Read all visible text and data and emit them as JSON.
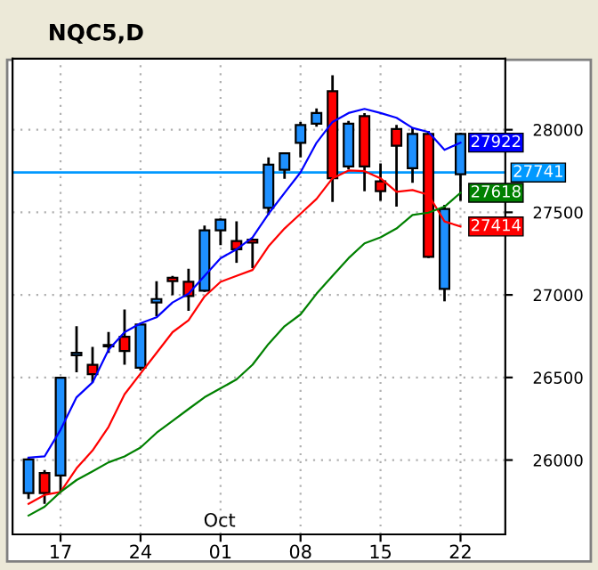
{
  "chart_data": {
    "type": "candlestick",
    "title": "NQC5,D",
    "categories": [
      null,
      null,
      "17",
      null,
      null,
      null,
      null,
      "24",
      null,
      null,
      null,
      null,
      "01",
      null,
      null,
      null,
      null,
      "08",
      null,
      null,
      null,
      null,
      "15",
      null,
      null,
      null,
      null,
      "22"
    ],
    "ohlc": [
      [
        25800,
        26015,
        25764,
        26004
      ],
      [
        25922,
        25939,
        25735,
        25800
      ],
      [
        25907,
        26498,
        25807,
        26498
      ],
      [
        26635,
        26810,
        26531,
        26649
      ],
      [
        26577,
        26685,
        26470,
        26520
      ],
      [
        26688,
        26775,
        26649,
        26696
      ],
      [
        26746,
        26911,
        26577,
        26660
      ],
      [
        26559,
        26821,
        26542,
        26821
      ],
      [
        26954,
        27083,
        26871,
        26975
      ],
      [
        27104,
        27115,
        26998,
        27083
      ],
      [
        27079,
        27158,
        26904,
        26993
      ],
      [
        27025,
        27420,
        27018,
        27391
      ],
      [
        27391,
        27463,
        27301,
        27455
      ],
      [
        27326,
        27445,
        27194,
        27276
      ],
      [
        27334,
        27341,
        27162,
        27316
      ],
      [
        27527,
        27832,
        27484,
        27789
      ],
      [
        27757,
        27864,
        27703,
        27857
      ],
      [
        27921,
        28047,
        27832,
        28029
      ],
      [
        28036,
        28129,
        28018,
        28101
      ],
      [
        28233,
        28330,
        27563,
        27706
      ],
      [
        27778,
        28054,
        27760,
        28036
      ],
      [
        28083,
        28101,
        27628,
        27778
      ],
      [
        27688,
        27796,
        27570,
        27628
      ],
      [
        28004,
        28029,
        27534,
        27903
      ],
      [
        27767,
        28011,
        27678,
        27975
      ],
      [
        27975,
        27993,
        27223,
        27230
      ],
      [
        27036,
        27545,
        26961,
        27520
      ],
      [
        27731,
        27982,
        27570,
        27975
      ]
    ],
    "colors": [
      "#1e90ff",
      "#ff0000",
      "#1e90ff",
      "#1e90ff",
      "#ff0000",
      "#1e90ff",
      "#ff0000",
      "#1e90ff",
      "#1e90ff",
      "#ff0000",
      "#ff0000",
      "#1e90ff",
      "#1e90ff",
      "#ff0000",
      "#ff0000",
      "#1e90ff",
      "#1e90ff",
      "#1e90ff",
      "#1e90ff",
      "#ff0000",
      "#1e90ff",
      "#ff0000",
      "#ff0000",
      "#ff0000",
      "#1e90ff",
      "#ff0000",
      "#1e90ff",
      "#1e90ff"
    ],
    "series": [
      {
        "type": "line",
        "color": "#0000ff",
        "values": [
          26015,
          26022,
          26183,
          26380,
          26470,
          26667,
          26774,
          26828,
          26864,
          26954,
          27007,
          27115,
          27222,
          27276,
          27348,
          27491,
          27617,
          27742,
          27921,
          28047,
          28101,
          28126,
          28101,
          28072,
          28011,
          27986,
          27878,
          27922
        ],
        "value_labels": [
          null,
          null,
          null,
          null,
          null,
          null,
          null,
          null,
          null,
          null,
          null,
          null,
          null,
          null,
          null,
          null,
          null,
          null,
          null,
          null,
          null,
          null,
          null,
          null,
          null,
          null,
          null,
          "27922"
        ]
      },
      {
        "type": "line",
        "color": "#ff0000",
        "values": [
          25735,
          25789,
          25807,
          25950,
          26058,
          26201,
          26398,
          26524,
          26649,
          26774,
          26846,
          26990,
          27079,
          27115,
          27151,
          27294,
          27402,
          27491,
          27581,
          27706,
          27753,
          27749,
          27706,
          27624,
          27635,
          27606,
          27445,
          27414
        ],
        "value_labels": [
          null,
          null,
          null,
          null,
          null,
          null,
          null,
          null,
          null,
          null,
          null,
          null,
          null,
          null,
          null,
          null,
          null,
          null,
          null,
          null,
          null,
          null,
          null,
          null,
          null,
          null,
          null,
          "27414"
        ]
      },
      {
        "type": "line",
        "color": "#008000",
        "values": [
          25664,
          25717,
          25807,
          25879,
          25932,
          25986,
          26022,
          26076,
          26165,
          26237,
          26309,
          26380,
          26434,
          26488,
          26577,
          26703,
          26810,
          26882,
          27007,
          27115,
          27222,
          27312,
          27348,
          27402,
          27484,
          27498,
          27534,
          27618
        ],
        "value_labels": [
          null,
          null,
          null,
          null,
          null,
          null,
          null,
          null,
          null,
          null,
          null,
          null,
          null,
          null,
          null,
          null,
          null,
          null,
          null,
          null,
          null,
          null,
          null,
          null,
          null,
          null,
          null,
          "27618"
        ]
      }
    ],
    "ref_lines": [
      {
        "axis": "y",
        "value": 27741,
        "label": "27741",
        "color": "#0099ff"
      }
    ],
    "ylim": [
      25550,
      28430
    ],
    "yticks": [
      26000,
      26500,
      27000,
      27500,
      28000
    ],
    "annotations": [
      "Oct"
    ],
    "grid": true
  }
}
